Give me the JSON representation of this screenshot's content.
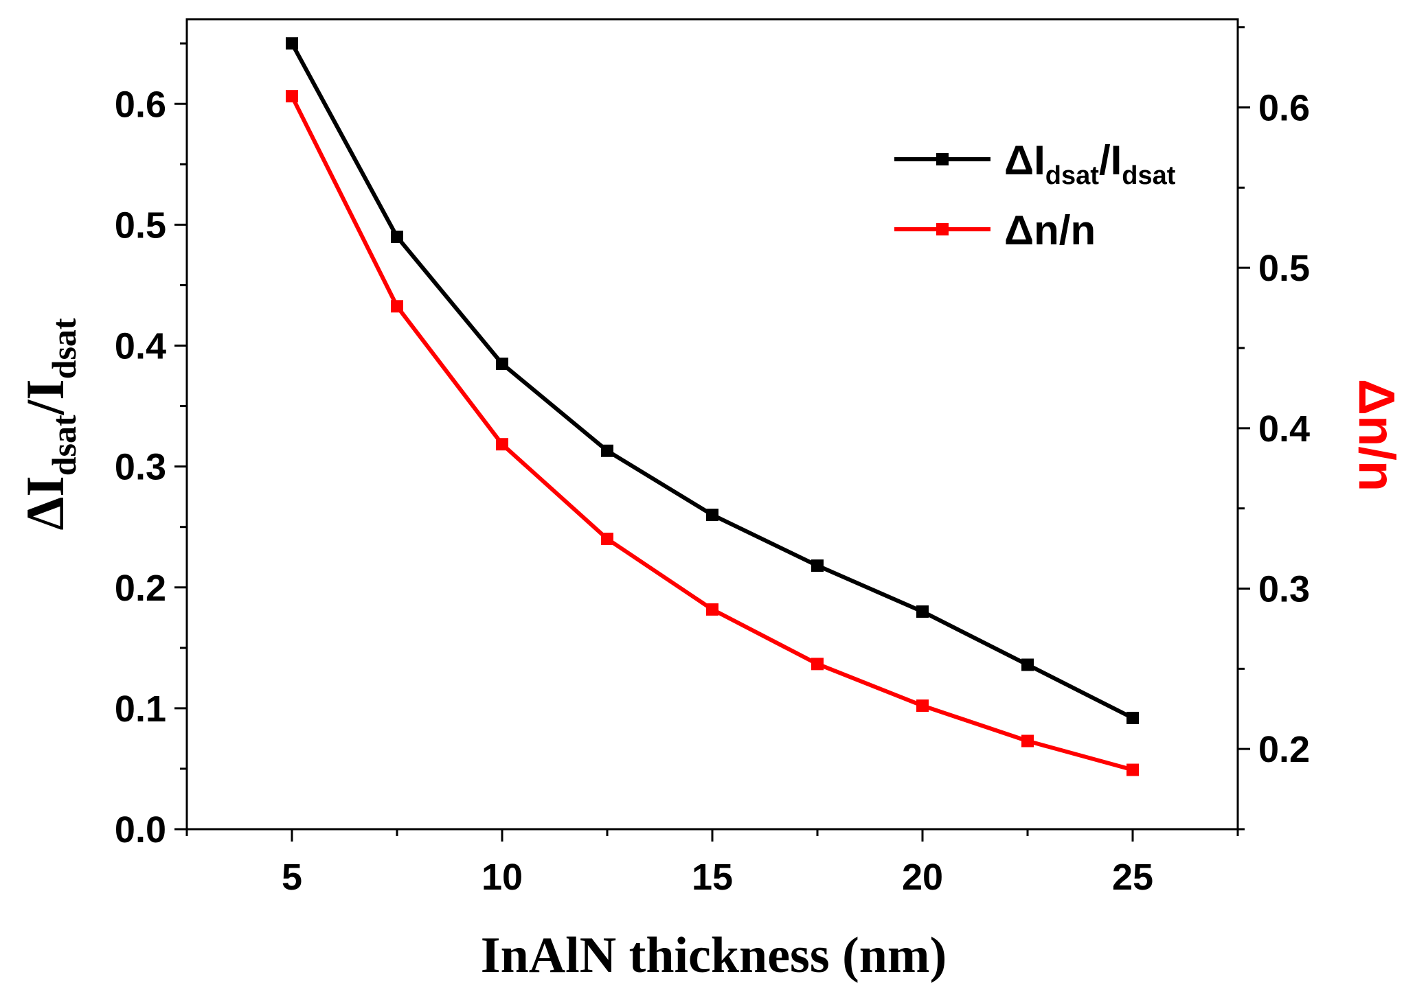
{
  "chart_data": {
    "type": "line",
    "x": [
      5,
      7.5,
      10,
      12.5,
      15,
      17.5,
      20,
      22.5,
      25
    ],
    "xlabel": "InAlN thickness (nm)",
    "xlim": [
      2.5,
      27.5
    ],
    "xticks": [
      "5",
      "10",
      "15",
      "20",
      "25"
    ],
    "ylabel_left": {
      "main": "ΔI",
      "sub1": "dsat",
      "sep": "/I",
      "sub2": "dsat"
    },
    "ylabel_right": "Δn/n",
    "ylim_left": [
      0.0,
      0.67
    ],
    "ylim_right": [
      0.15,
      0.655
    ],
    "yticks_left": [
      "0.0",
      "0.1",
      "0.2",
      "0.3",
      "0.4",
      "0.5",
      "0.6"
    ],
    "yticks_right": [
      "0.2",
      "0.3",
      "0.4",
      "0.5",
      "0.6"
    ],
    "grid": false,
    "legend_position": "top-right",
    "series": [
      {
        "name": "ΔI_dsat/I_dsat",
        "legend": {
          "main": "ΔI",
          "sub1": "dsat",
          "sep": "/I",
          "sub2": "dsat"
        },
        "axis": "left",
        "color": "#000000",
        "marker": "square",
        "values": [
          0.65,
          0.49,
          0.385,
          0.313,
          0.26,
          0.218,
          0.18,
          0.136,
          0.092
        ]
      },
      {
        "name": "Δn/n",
        "legend": {
          "main": "Δn/n"
        },
        "axis": "right",
        "color": "#ff0000",
        "marker": "square",
        "values": [
          0.607,
          0.476,
          0.39,
          0.331,
          0.287,
          0.253,
          0.227,
          0.205,
          0.187
        ]
      }
    ]
  }
}
